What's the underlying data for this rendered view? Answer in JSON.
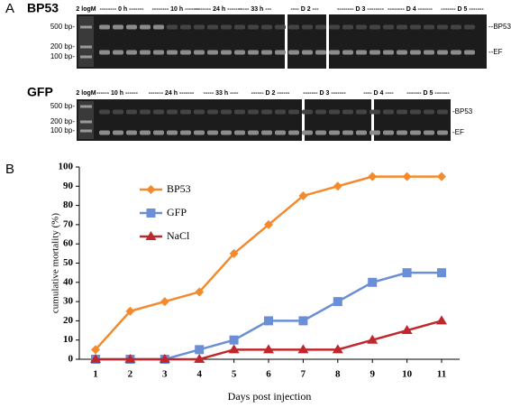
{
  "panel_labels": [
    "A",
    "B"
  ],
  "gels": [
    {
      "name": "BP53",
      "ladder": "2 logM",
      "lanes": [
        "-------- 0 h -------",
        "-------- 10 h -------",
        "-------- 24 h -------",
        "----- 33 h ---",
        "---- D 2 ---",
        "-------- D 3 --------",
        "-------- D 4 -------",
        "------- D 5 -------"
      ],
      "markers": [
        "500 bp-",
        "200 bp-",
        "100 bp-"
      ],
      "bands": [
        "--BP53",
        "--EF"
      ]
    },
    {
      "name": "GFP",
      "ladder": "2 logM",
      "lanes": [
        "------ 10 h ------",
        "------- 24 h -------",
        "----- 33 h ----",
        "------ D 2 ------",
        "------- D 3 -------",
        "---- D 4 ----",
        "------- D 5 -------"
      ],
      "markers": [
        "500 bp-",
        "200 bp-",
        "100 bp-"
      ],
      "bands": [
        "-BP53",
        "-EF"
      ]
    }
  ],
  "chart_data": {
    "type": "line",
    "xlabel": "Days post injection",
    "ylabel": "cumulative mortality (%)",
    "categories": [
      "1",
      "2",
      "3",
      "4",
      "5",
      "6",
      "7",
      "8",
      "9",
      "10",
      "11"
    ],
    "series": [
      {
        "name": "BP53",
        "color": "#f28a2e",
        "marker": "diamond",
        "values": [
          5,
          25,
          30,
          35,
          55,
          70,
          85,
          90,
          95,
          95,
          95
        ]
      },
      {
        "name": "GFP",
        "color": "#6b8fd6",
        "marker": "square",
        "values": [
          0,
          0,
          0,
          5,
          10,
          20,
          20,
          30,
          40,
          45,
          45
        ]
      },
      {
        "name": "NaCl",
        "color": "#c0272d",
        "marker": "triangle",
        "values": [
          0,
          0,
          0,
          0,
          5,
          5,
          5,
          5,
          10,
          15,
          20
        ]
      }
    ],
    "ylim": [
      0,
      100
    ],
    "yticks": [
      0,
      10,
      20,
      30,
      40,
      50,
      60,
      70,
      80,
      90,
      100
    ],
    "legend": "upper left"
  }
}
